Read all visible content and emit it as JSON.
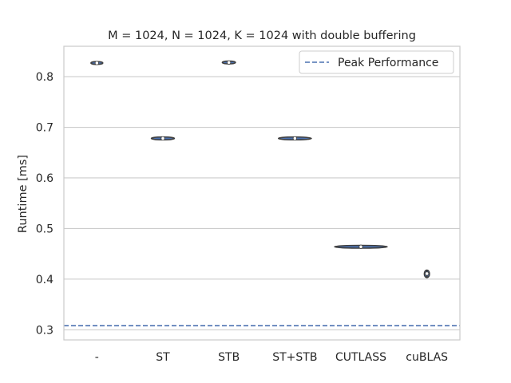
{
  "chart_data": {
    "type": "violin",
    "title": "M = 1024, N = 1024, K = 1024 with double buffering",
    "xlabel": "",
    "ylabel": "Runtime [ms]",
    "ylim": [
      0.28,
      0.86
    ],
    "yticks": [
      0.3,
      0.4,
      0.5,
      0.6,
      0.7,
      0.8
    ],
    "ytick_labels": [
      "0.3",
      "0.4",
      "0.5",
      "0.6",
      "0.7",
      "0.8"
    ],
    "grid": true,
    "legend_position": "top-right",
    "categories": [
      "-",
      "ST",
      "STB",
      "ST+STB",
      "CUTLASS",
      "cuBLAS"
    ],
    "violins": [
      {
        "category": "-",
        "median": 0.827,
        "min": 0.825,
        "max": 0.829,
        "width": 0.18
      },
      {
        "category": "ST",
        "median": 0.678,
        "min": 0.676,
        "max": 0.68,
        "width": 0.35
      },
      {
        "category": "STB",
        "median": 0.828,
        "min": 0.826,
        "max": 0.83,
        "width": 0.2
      },
      {
        "category": "ST+STB",
        "median": 0.678,
        "min": 0.677,
        "max": 0.679,
        "width": 0.5
      },
      {
        "category": "CUTLASS",
        "median": 0.464,
        "min": 0.463,
        "max": 0.465,
        "width": 0.8
      },
      {
        "category": "cuBLAS",
        "median": 0.411,
        "min": 0.403,
        "max": 0.418,
        "width": 0.08
      }
    ],
    "reference_lines": [
      {
        "name": "Peak Performance",
        "y": 0.308,
        "style": "dashed",
        "color": "#4c72b0"
      }
    ],
    "violin_fill": "#4c72b0",
    "violin_edge": "#3f3f3f"
  }
}
